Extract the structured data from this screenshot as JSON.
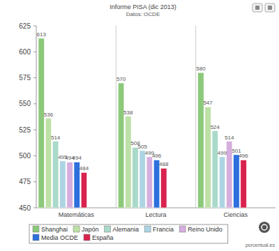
{
  "chart_data": {
    "type": "bar",
    "title": "Informe PISA (dic 2013)",
    "subtitle": "Datos: OCDE",
    "categories": [
      "Matemáticas",
      "Lectura",
      "Ciencias"
    ],
    "series": [
      {
        "name": "Shanghai",
        "color": "#8cc97a",
        "values": [
          613,
          570,
          580
        ]
      },
      {
        "name": "Japón",
        "color": "#bde0a6",
        "values": [
          536,
          538,
          547
        ]
      },
      {
        "name": "Alemania",
        "color": "#a9d9c9",
        "values": [
          514,
          508,
          524
        ]
      },
      {
        "name": "Francia",
        "color": "#add4e3",
        "values": [
          495,
          505,
          499
        ]
      },
      {
        "name": "Reino Unido",
        "color": "#d6aede",
        "values": [
          494,
          499,
          514
        ]
      },
      {
        "name": "Media OCDE",
        "color": "#2d6fdc",
        "values": [
          494,
          496,
          501
        ]
      },
      {
        "name": "España",
        "color": "#d8234e",
        "values": [
          484,
          488,
          496
        ]
      }
    ],
    "ylim": [
      450,
      625
    ],
    "yticks": [
      450,
      475,
      500,
      525,
      550,
      575,
      600,
      625
    ],
    "grid": false,
    "legend": "bottom",
    "data_labels": true,
    "annotations": [
      "porcentual.es"
    ]
  }
}
